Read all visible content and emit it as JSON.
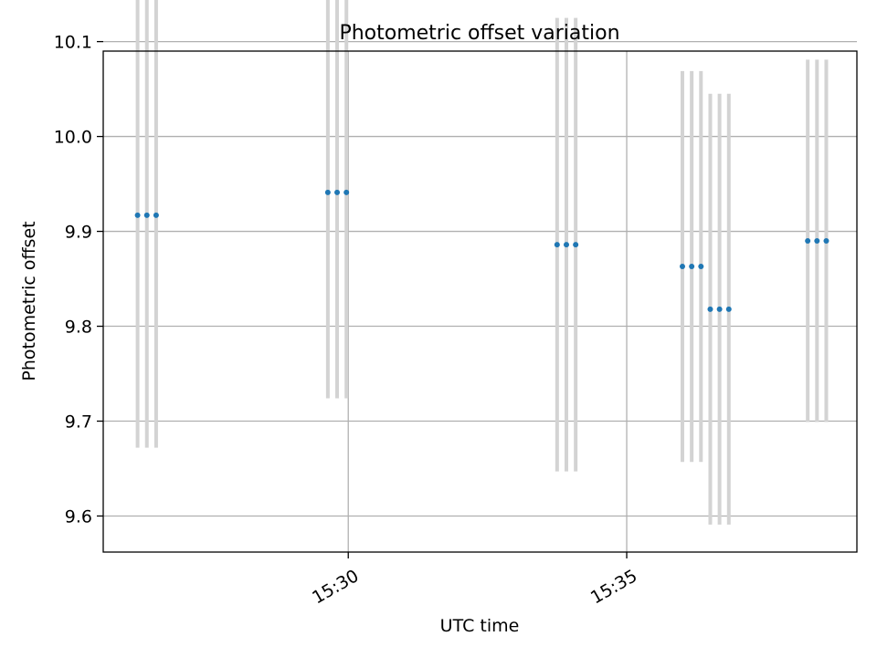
{
  "chart_data": {
    "type": "scatter",
    "title": "Photometric offset variation",
    "xlabel": "UTC time",
    "ylabel": "Photometric offset",
    "x_axis_type": "time",
    "xlim": [
      "15:25:36",
      "15:39:08"
    ],
    "ylim": [
      9.562,
      10.09
    ],
    "y_ticks": [
      9.6,
      9.7,
      9.8,
      9.9,
      10.0,
      10.1
    ],
    "y_tick_labels": [
      "9.6",
      "9.7",
      "9.8",
      "9.9",
      "10.0",
      "10.1"
    ],
    "x_ticks": [
      "15:30",
      "15:35"
    ],
    "x_tick_labels": [
      "15:30",
      "15:35"
    ],
    "x_tick_label_rotation": "30deg",
    "grid": true,
    "colors": {
      "point": "#1f77b4",
      "errorbar": "#d3d3d3",
      "grid": "#b0b0b0",
      "axes": "#000000"
    },
    "points": [
      {
        "x": "15:26:13",
        "y": 9.917,
        "yerr": 0.245
      },
      {
        "x": "15:26:23",
        "y": 9.917,
        "yerr": 0.245
      },
      {
        "x": "15:26:33",
        "y": 9.917,
        "yerr": 0.245
      },
      {
        "x": "15:29:38",
        "y": 9.941,
        "yerr": 0.217
      },
      {
        "x": "15:29:48",
        "y": 9.941,
        "yerr": 0.217
      },
      {
        "x": "15:29:58",
        "y": 9.941,
        "yerr": 0.217
      },
      {
        "x": "15:33:45",
        "y": 9.886,
        "yerr": 0.239
      },
      {
        "x": "15:33:55",
        "y": 9.886,
        "yerr": 0.239
      },
      {
        "x": "15:34:05",
        "y": 9.886,
        "yerr": 0.239
      },
      {
        "x": "15:36:00",
        "y": 9.863,
        "yerr": 0.206
      },
      {
        "x": "15:36:10",
        "y": 9.863,
        "yerr": 0.206
      },
      {
        "x": "15:36:20",
        "y": 9.863,
        "yerr": 0.206
      },
      {
        "x": "15:36:30",
        "y": 9.818,
        "yerr": 0.227
      },
      {
        "x": "15:36:40",
        "y": 9.818,
        "yerr": 0.227
      },
      {
        "x": "15:36:50",
        "y": 9.818,
        "yerr": 0.227
      },
      {
        "x": "15:38:15",
        "y": 9.89,
        "yerr": 0.191
      },
      {
        "x": "15:38:25",
        "y": 9.89,
        "yerr": 0.191
      },
      {
        "x": "15:38:35",
        "y": 9.89,
        "yerr": 0.191
      }
    ]
  }
}
